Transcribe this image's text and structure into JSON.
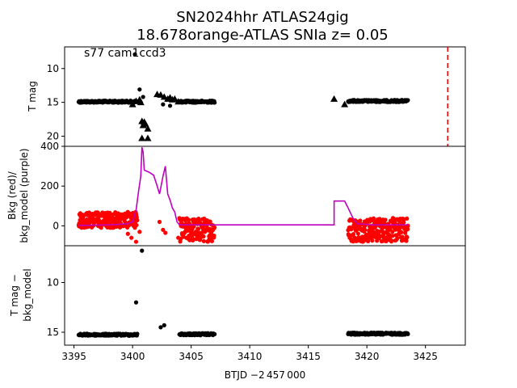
{
  "title_line1": "SN2024hhr  ATLAS24gig",
  "title_line2": "18.678orange-ATLAS SNIa z= 0.05",
  "annotation": "s77 cam1ccd3",
  "xlabel": "BTJD −2 457 000",
  "chart_data": [
    {
      "type": "scatter",
      "ylabel": "T mag",
      "yticks": [
        "10",
        "15",
        "20"
      ],
      "ylim": [
        21.5,
        6.8
      ],
      "y_inverted": true,
      "marker_color": "#000000",
      "annotation": "s77 cam1ccd3",
      "vline": {
        "x": 3426.9,
        "color": "#ff0000",
        "style": "dashed"
      },
      "segments": [
        {
          "x": [
            3395.4,
            3400.4
          ],
          "y": 14.9,
          "jitter": 0.15
        },
        {
          "x": [
            3404.0,
            3407.0
          ],
          "y": 14.9,
          "jitter": 0.15
        },
        {
          "x": [
            3418.4,
            3423.5
          ],
          "y": 14.8,
          "jitter": 0.15
        }
      ],
      "points": [
        {
          "x": 3400.2,
          "y": 7.9
        },
        {
          "x": 3400.6,
          "y": 13.1
        },
        {
          "x": 3400.9,
          "y": 14.2
        },
        {
          "x": 3402.6,
          "y": 15.3
        },
        {
          "x": 3403.2,
          "y": 15.5
        }
      ],
      "triangles": [
        {
          "x": 3400.0,
          "y": 15.3
        },
        {
          "x": 3400.3,
          "y": 14.8
        },
        {
          "x": 3400.6,
          "y": 14.6
        },
        {
          "x": 3400.7,
          "y": 15.0
        },
        {
          "x": 3400.8,
          "y": 17.8
        },
        {
          "x": 3400.9,
          "y": 18.4
        },
        {
          "x": 3401.0,
          "y": 17.9
        },
        {
          "x": 3401.1,
          "y": 18.2
        },
        {
          "x": 3401.3,
          "y": 18.9
        },
        {
          "x": 3400.8,
          "y": 20.3
        },
        {
          "x": 3401.3,
          "y": 20.3
        },
        {
          "x": 3402.1,
          "y": 13.8
        },
        {
          "x": 3402.4,
          "y": 13.9
        },
        {
          "x": 3402.7,
          "y": 14.2
        },
        {
          "x": 3403.0,
          "y": 14.5
        },
        {
          "x": 3403.2,
          "y": 14.3
        },
        {
          "x": 3403.4,
          "y": 14.6
        },
        {
          "x": 3403.6,
          "y": 14.5
        },
        {
          "x": 3403.9,
          "y": 14.9
        },
        {
          "x": 3417.2,
          "y": 14.5
        },
        {
          "x": 3418.1,
          "y": 15.3
        }
      ]
    },
    {
      "type": "scatter",
      "ylabel_line1": "Bkg (red)/",
      "ylabel_line2": "bkg_model (purple)",
      "yticks": [
        "0",
        "200",
        "400"
      ],
      "ylim": [
        -100,
        400
      ],
      "marker_color": "#ff0000",
      "model_color": "#bf00bf",
      "red_segments": [
        {
          "x": [
            3395.4,
            3400.4
          ],
          "y_lo": -10,
          "y_hi": 70
        },
        {
          "x": [
            3404.0,
            3407.0
          ],
          "y_lo": -80,
          "y_hi": 40
        },
        {
          "x": [
            3418.4,
            3423.5
          ],
          "y_lo": -80,
          "y_hi": 40
        }
      ],
      "red_points": [
        {
          "x": 3399.6,
          "y": -40
        },
        {
          "x": 3399.9,
          "y": -60
        },
        {
          "x": 3400.3,
          "y": -80
        },
        {
          "x": 3400.6,
          "y": -30
        },
        {
          "x": 3402.3,
          "y": 20
        },
        {
          "x": 3402.6,
          "y": -20
        },
        {
          "x": 3402.8,
          "y": -35
        },
        {
          "x": 3403.9,
          "y": -60
        }
      ],
      "model_line": [
        [
          3395.4,
          2
        ],
        [
          3398.0,
          5
        ],
        [
          3399.5,
          10
        ],
        [
          3400.0,
          20
        ],
        [
          3400.3,
          80
        ],
        [
          3400.5,
          170
        ],
        [
          3400.7,
          250
        ],
        [
          3400.8,
          395
        ],
        [
          3400.9,
          370
        ],
        [
          3401.0,
          280
        ],
        [
          3401.4,
          270
        ],
        [
          3401.8,
          255
        ],
        [
          3402.1,
          200
        ],
        [
          3402.3,
          160
        ],
        [
          3402.6,
          250
        ],
        [
          3402.8,
          300
        ],
        [
          3403.0,
          160
        ],
        [
          3403.2,
          130
        ],
        [
          3403.4,
          90
        ],
        [
          3403.6,
          70
        ],
        [
          3403.8,
          20
        ],
        [
          3404.0,
          5
        ],
        [
          3404.5,
          5
        ],
        [
          3407.0,
          5
        ],
        [
          3417.2,
          5
        ],
        [
          3417.2,
          125
        ],
        [
          3418.1,
          125
        ],
        [
          3418.4,
          90
        ],
        [
          3418.8,
          40
        ],
        [
          3419.2,
          10
        ],
        [
          3420.5,
          5
        ],
        [
          3423.5,
          5
        ]
      ]
    },
    {
      "type": "scatter",
      "ylabel_line1": "T mag −",
      "ylabel_line2": "bkg_model",
      "yticks": [
        "10",
        "15"
      ],
      "ylim": [
        16.3,
        6.3
      ],
      "y_inverted": true,
      "marker_color": "#000000",
      "segments": [
        {
          "x": [
            3395.4,
            3400.4
          ],
          "y": 15.25,
          "jitter": 0.1
        },
        {
          "x": [
            3404.0,
            3407.0
          ],
          "y": 15.2,
          "jitter": 0.1
        },
        {
          "x": [
            3418.4,
            3423.5
          ],
          "y": 15.15,
          "jitter": 0.1
        }
      ],
      "points": [
        {
          "x": 3400.8,
          "y": 6.8
        },
        {
          "x": 3400.3,
          "y": 12.0
        },
        {
          "x": 3402.4,
          "y": 14.5
        },
        {
          "x": 3402.7,
          "y": 14.3
        },
        {
          "x": 3400.1,
          "y": 15.3
        }
      ]
    }
  ],
  "xaxis": {
    "xlim": [
      3394.2,
      3428.4
    ],
    "ticks": [
      {
        "value": 3395,
        "label": "3395"
      },
      {
        "value": 3400,
        "label": "3400"
      },
      {
        "value": 3405,
        "label": "3405"
      },
      {
        "value": 3410,
        "label": "3410"
      },
      {
        "value": 3415,
        "label": "3415"
      },
      {
        "value": 3420,
        "label": "3420"
      },
      {
        "value": 3425,
        "label": "3425"
      }
    ]
  }
}
